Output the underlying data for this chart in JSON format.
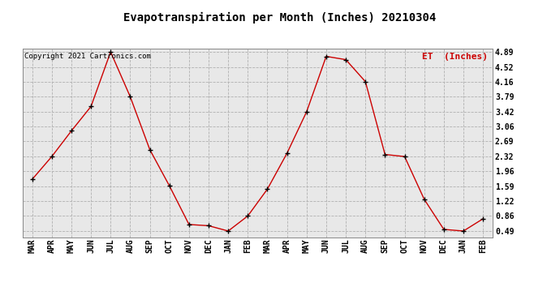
{
  "title": "Evapotranspiration per Month (Inches) 20210304",
  "copyright_text": "Copyright 2021 Cartronics.com",
  "legend_label": "ET  (Inches)",
  "months": [
    "MAR",
    "APR",
    "MAY",
    "JUN",
    "JUL",
    "AUG",
    "SEP",
    "OCT",
    "NOV",
    "DEC",
    "JAN",
    "FEB",
    "MAR",
    "APR",
    "MAY",
    "JUN",
    "JUL",
    "AUG",
    "SEP",
    "OCT",
    "NOV",
    "DEC",
    "JAN",
    "FEB"
  ],
  "values": [
    1.76,
    2.32,
    2.95,
    3.55,
    4.89,
    3.79,
    2.49,
    1.6,
    0.65,
    0.62,
    0.49,
    0.86,
    1.52,
    2.4,
    3.42,
    4.78,
    4.7,
    4.16,
    2.37,
    2.32,
    1.27,
    0.53,
    0.49,
    0.79
  ],
  "yticks": [
    0.49,
    0.86,
    1.22,
    1.59,
    1.96,
    2.32,
    2.69,
    3.06,
    3.42,
    3.79,
    4.16,
    4.52,
    4.89
  ],
  "line_color": "#cc0000",
  "marker_color": "#000000",
  "grid_color": "#b0b0b0",
  "background_color": "#e8e8e8",
  "title_fontsize": 10,
  "copyright_fontsize": 6.5,
  "legend_color": "#cc0000",
  "legend_fontsize": 8,
  "tick_label_fontsize": 7,
  "ylabel_right_fontsize": 7
}
